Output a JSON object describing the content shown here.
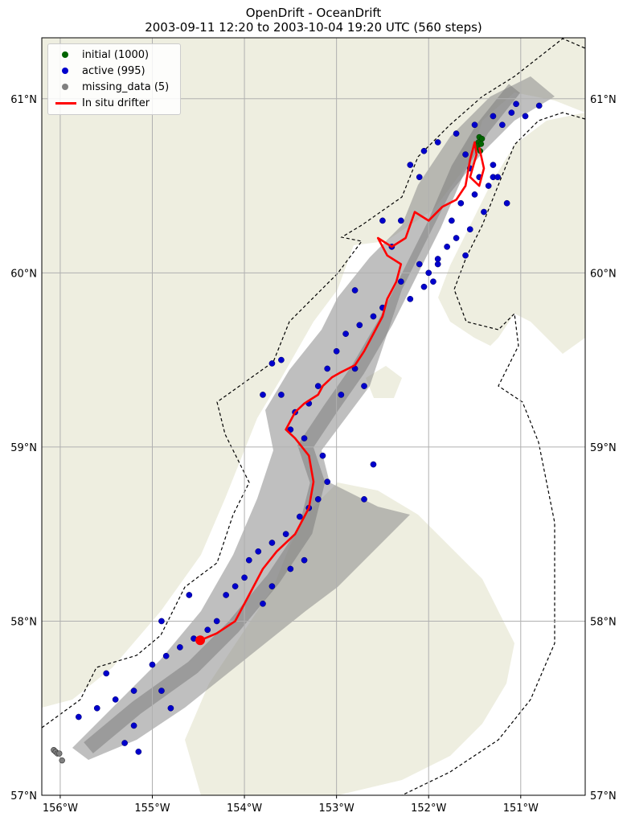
{
  "chart_data": {
    "type": "scatter",
    "title": "OpenDrift - OceanDrift",
    "subtitle": "2003-09-11 12:20 to 2003-10-04 19:20 UTC (560 steps)",
    "xlim": [
      -156.2,
      -150.3
    ],
    "ylim": [
      57.0,
      61.35
    ],
    "grid": true,
    "legend_position": "top-left",
    "x_ticks": [
      {
        "value": -156,
        "label": "156°W"
      },
      {
        "value": -155,
        "label": "155°W"
      },
      {
        "value": -154,
        "label": "154°W"
      },
      {
        "value": -153,
        "label": "153°W"
      },
      {
        "value": -152,
        "label": "152°W"
      },
      {
        "value": -151,
        "label": "151°W"
      }
    ],
    "y_ticks": [
      {
        "value": 57,
        "label": "57°N"
      },
      {
        "value": 58,
        "label": "58°N"
      },
      {
        "value": 59,
        "label": "59°N"
      },
      {
        "value": 60,
        "label": "60°N"
      },
      {
        "value": 61,
        "label": "61°N"
      }
    ],
    "legend": [
      {
        "label": "initial (1000)",
        "color": "#006400",
        "marker": "dot"
      },
      {
        "label": "active (995)",
        "color": "#0000cc",
        "marker": "dot"
      },
      {
        "label": "missing_data (5)",
        "color": "#808080",
        "marker": "dot"
      },
      {
        "label": "In situ drifter",
        "color": "#ff0000",
        "marker": "line"
      }
    ],
    "colors": {
      "land": "#eeeee0",
      "trajectories": "#888888",
      "frame": "#000000"
    },
    "series": [
      {
        "name": "initial (1000)",
        "points": [
          [
            -151.47,
            60.72
          ],
          [
            -151.46,
            60.75
          ],
          [
            -151.45,
            60.78
          ],
          [
            -151.43,
            60.74
          ],
          [
            -151.44,
            60.7
          ],
          [
            -151.48,
            60.73
          ],
          [
            -151.42,
            60.77
          ]
        ]
      },
      {
        "name": "active (995)",
        "points": [
          [
            -151.3,
            60.9
          ],
          [
            -151.1,
            60.92
          ],
          [
            -150.95,
            60.9
          ],
          [
            -150.8,
            60.96
          ],
          [
            -151.05,
            60.97
          ],
          [
            -151.2,
            60.85
          ],
          [
            -151.5,
            60.85
          ],
          [
            -151.7,
            60.8
          ],
          [
            -151.9,
            60.75
          ],
          [
            -152.05,
            60.7
          ],
          [
            -152.2,
            60.62
          ],
          [
            -152.1,
            60.55
          ],
          [
            -151.55,
            60.6
          ],
          [
            -151.45,
            60.55
          ],
          [
            -151.35,
            60.5
          ],
          [
            -151.3,
            60.55
          ],
          [
            -151.5,
            60.45
          ],
          [
            -151.65,
            60.4
          ],
          [
            -151.4,
            60.35
          ],
          [
            -151.55,
            60.25
          ],
          [
            -151.7,
            60.2
          ],
          [
            -151.6,
            60.1
          ],
          [
            -151.8,
            60.15
          ],
          [
            -151.9,
            60.05
          ],
          [
            -152.0,
            60.0
          ],
          [
            -151.95,
            59.95
          ],
          [
            -152.05,
            59.92
          ],
          [
            -151.9,
            60.08
          ],
          [
            -152.1,
            60.05
          ],
          [
            -152.2,
            59.85
          ],
          [
            -152.3,
            59.95
          ],
          [
            -152.4,
            60.15
          ],
          [
            -152.5,
            59.8
          ],
          [
            -152.6,
            59.75
          ],
          [
            -152.75,
            59.7
          ],
          [
            -152.9,
            59.65
          ],
          [
            -153.0,
            59.55
          ],
          [
            -153.1,
            59.45
          ],
          [
            -152.8,
            59.45
          ],
          [
            -152.7,
            59.35
          ],
          [
            -152.95,
            59.3
          ],
          [
            -153.2,
            59.35
          ],
          [
            -153.3,
            59.25
          ],
          [
            -153.45,
            59.2
          ],
          [
            -153.5,
            59.1
          ],
          [
            -153.35,
            59.05
          ],
          [
            -153.6,
            59.3
          ],
          [
            -153.7,
            59.48
          ],
          [
            -153.15,
            58.95
          ],
          [
            -153.1,
            58.8
          ],
          [
            -153.2,
            58.7
          ],
          [
            -153.3,
            58.65
          ],
          [
            -153.4,
            58.6
          ],
          [
            -153.55,
            58.5
          ],
          [
            -153.7,
            58.45
          ],
          [
            -153.85,
            58.4
          ],
          [
            -153.95,
            58.35
          ],
          [
            -154.0,
            58.25
          ],
          [
            -154.1,
            58.2
          ],
          [
            -154.2,
            58.15
          ],
          [
            -153.5,
            58.3
          ],
          [
            -153.35,
            58.35
          ],
          [
            -153.7,
            58.2
          ],
          [
            -153.8,
            58.1
          ],
          [
            -154.3,
            58.0
          ],
          [
            -154.4,
            57.95
          ],
          [
            -154.55,
            57.9
          ],
          [
            -154.7,
            57.85
          ],
          [
            -154.85,
            57.8
          ],
          [
            -155.0,
            57.75
          ],
          [
            -155.2,
            57.6
          ],
          [
            -155.4,
            57.55
          ],
          [
            -155.6,
            57.5
          ],
          [
            -155.8,
            57.45
          ],
          [
            -155.2,
            57.4
          ],
          [
            -155.3,
            57.3
          ],
          [
            -154.9,
            57.6
          ],
          [
            -154.8,
            57.5
          ],
          [
            -155.5,
            57.7
          ],
          [
            -155.15,
            57.25
          ],
          [
            -154.6,
            58.15
          ],
          [
            -154.9,
            58.0
          ],
          [
            -152.6,
            58.9
          ],
          [
            -152.7,
            58.7
          ],
          [
            -153.6,
            59.5
          ],
          [
            -153.8,
            59.3
          ],
          [
            -152.8,
            59.9
          ],
          [
            -152.5,
            60.3
          ],
          [
            -152.3,
            60.3
          ],
          [
            -151.75,
            60.3
          ],
          [
            -151.6,
            60.68
          ],
          [
            -151.3,
            60.62
          ],
          [
            -151.25,
            60.55
          ],
          [
            -151.15,
            60.4
          ]
        ]
      },
      {
        "name": "missing_data (5)",
        "points": [
          [
            -156.07,
            57.26
          ],
          [
            -156.05,
            57.25
          ],
          [
            -156.03,
            57.24
          ],
          [
            -156.01,
            57.24
          ],
          [
            -155.98,
            57.2
          ]
        ]
      },
      {
        "name": "In situ drifter",
        "points": [
          [
            -154.48,
            57.89
          ],
          [
            -154.3,
            57.93
          ],
          [
            -154.1,
            58.0
          ],
          [
            -153.95,
            58.15
          ],
          [
            -153.8,
            58.3
          ],
          [
            -153.65,
            58.4
          ],
          [
            -153.45,
            58.5
          ],
          [
            -153.3,
            58.65
          ],
          [
            -153.25,
            58.8
          ],
          [
            -153.3,
            58.95
          ],
          [
            -153.45,
            59.05
          ],
          [
            -153.55,
            59.1
          ],
          [
            -153.45,
            59.2
          ],
          [
            -153.35,
            59.25
          ],
          [
            -153.2,
            59.3
          ],
          [
            -153.15,
            59.35
          ],
          [
            -153.05,
            59.4
          ],
          [
            -152.95,
            59.43
          ],
          [
            -152.8,
            59.47
          ],
          [
            -152.7,
            59.55
          ],
          [
            -152.6,
            59.65
          ],
          [
            -152.5,
            59.75
          ],
          [
            -152.45,
            59.85
          ],
          [
            -152.35,
            59.95
          ],
          [
            -152.3,
            60.05
          ],
          [
            -152.45,
            60.1
          ],
          [
            -152.55,
            60.2
          ],
          [
            -152.4,
            60.15
          ],
          [
            -152.25,
            60.2
          ],
          [
            -152.15,
            60.35
          ],
          [
            -152.0,
            60.3
          ],
          [
            -151.85,
            60.38
          ],
          [
            -151.7,
            60.42
          ],
          [
            -151.6,
            60.5
          ],
          [
            -151.55,
            60.65
          ],
          [
            -151.5,
            60.75
          ],
          [
            -151.48,
            60.68
          ],
          [
            -151.55,
            60.55
          ],
          [
            -151.45,
            60.5
          ],
          [
            -151.4,
            60.6
          ],
          [
            -151.45,
            60.72
          ]
        ]
      }
    ]
  }
}
